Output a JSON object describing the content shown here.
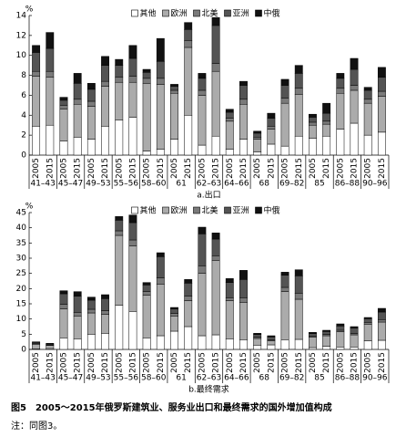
{
  "chart_data": [
    {
      "type": "bar",
      "stacked": true,
      "y_label": "%",
      "subtitle": "a.出口",
      "legend": "top",
      "categories": [
        "2005",
        "2015",
        "2005",
        "2015",
        "2005",
        "2015",
        "2005",
        "2015",
        "2005",
        "2015",
        "2005",
        "2015",
        "2005",
        "2015",
        "2005",
        "2015",
        "2005",
        "2015",
        "2005",
        "2015",
        "2005",
        "2015",
        "2005",
        "2015",
        "2005",
        "2015"
      ],
      "groups": [
        "41–43",
        "45–47",
        "49–53",
        "55–56",
        "58–60",
        "61",
        "62–63",
        "64–66",
        "68",
        "69–82",
        "85",
        "86–88",
        "90–96"
      ],
      "series": [
        {
          "name": "其他",
          "color": "#ffffff",
          "values": [
            2.9,
            3.0,
            1.4,
            1.8,
            1.6,
            2.9,
            3.5,
            3.8,
            0.4,
            0.6,
            1.6,
            4.0,
            1.0,
            1.9,
            0.6,
            1.6,
            0.3,
            1.1,
            0.9,
            1.9,
            1.7,
            1.9,
            2.6,
            3.2,
            2.0,
            2.3
          ]
        },
        {
          "name": "欧洲",
          "color": "#ababab",
          "values": [
            5.0,
            4.8,
            3.2,
            3.3,
            3.3,
            4.0,
            3.8,
            3.5,
            6.8,
            6.5,
            4.6,
            6.8,
            5.0,
            6.5,
            2.8,
            3.5,
            1.3,
            1.5,
            4.3,
            4.2,
            1.3,
            1.2,
            3.6,
            3.3,
            3.2,
            3.6
          ]
        },
        {
          "name": "北美",
          "color": "#7a7a7a",
          "values": [
            0.5,
            0.6,
            0.4,
            0.5,
            0.5,
            0.5,
            0.5,
            0.6,
            0.5,
            0.6,
            0.3,
            0.7,
            0.5,
            0.8,
            0.3,
            0.5,
            0.2,
            0.3,
            0.5,
            0.6,
            0.3,
            0.3,
            0.5,
            0.5,
            0.4,
            0.5
          ]
        },
        {
          "name": "亚洲",
          "color": "#545454",
          "values": [
            1.9,
            2.3,
            0.5,
            1.6,
            1.2,
            1.6,
            1.2,
            1.8,
            0.6,
            1.7,
            0.4,
            1.1,
            1.2,
            3.8,
            0.6,
            1.4,
            0.4,
            0.8,
            1.3,
            1.5,
            0.5,
            0.8,
            1.0,
            1.6,
            0.9,
            1.4
          ]
        },
        {
          "name": "中俄",
          "color": "#111111",
          "values": [
            0.7,
            1.6,
            0.3,
            1.0,
            0.6,
            0.9,
            0.6,
            1.3,
            0.3,
            2.3,
            0.2,
            0.7,
            0.5,
            0.8,
            0.3,
            0.4,
            0.2,
            0.5,
            0.6,
            0.8,
            0.3,
            1.0,
            0.5,
            1.1,
            0.3,
            1.0
          ]
        }
      ],
      "ylim": [
        0,
        14
      ],
      "yticks": [
        0,
        2,
        4,
        6,
        8,
        10,
        12,
        14
      ]
    },
    {
      "type": "bar",
      "stacked": true,
      "y_label": "%",
      "subtitle": "b.最终需求",
      "legend": "top",
      "categories": [
        "2005",
        "2015",
        "2005",
        "2015",
        "2005",
        "2015",
        "2005",
        "2015",
        "2005",
        "2015",
        "2005",
        "2015",
        "2005",
        "2015",
        "2005",
        "2015",
        "2005",
        "2015",
        "2005",
        "2015",
        "2005",
        "2015",
        "2005",
        "2015",
        "2005",
        "2015"
      ],
      "groups": [
        "41–43",
        "45–47",
        "49–53",
        "55–56",
        "58–60",
        "61",
        "62–63",
        "64–66",
        "68",
        "69–82",
        "85",
        "86–88",
        "90–96"
      ],
      "series": [
        {
          "name": "其他",
          "color": "#ffffff",
          "values": [
            0.2,
            0.3,
            3.8,
            3.5,
            5.0,
            5.3,
            14.5,
            12.5,
            3.8,
            4.5,
            6.0,
            7.5,
            4.5,
            4.8,
            3.5,
            3.2,
            1.4,
            1.5,
            3.2,
            3.3,
            0.6,
            1.0,
            0.8,
            0.8,
            2.8,
            3.0
          ]
        },
        {
          "name": "欧洲",
          "color": "#ababab",
          "values": [
            1.5,
            1.0,
            9.5,
            7.5,
            7.0,
            6.2,
            23.0,
            21.5,
            14.0,
            17.0,
            5.0,
            8.5,
            20.5,
            24.5,
            12.5,
            12.3,
            2.2,
            1.3,
            15.8,
            13.2,
            3.4,
            3.5,
            5.0,
            4.0,
            5.5,
            6.0
          ]
        },
        {
          "name": "北美",
          "color": "#7a7a7a",
          "values": [
            0.2,
            0.2,
            1.5,
            1.2,
            1.2,
            1.2,
            1.5,
            2.0,
            1.2,
            2.0,
            0.8,
            1.5,
            2.5,
            1.5,
            1.0,
            1.5,
            0.4,
            0.3,
            1.4,
            2.0,
            0.4,
            0.4,
            0.5,
            0.4,
            0.6,
            0.8
          ]
        },
        {
          "name": "亚洲",
          "color": "#545454",
          "values": [
            0.4,
            0.3,
            3.5,
            5.3,
            3.0,
            4.0,
            3.5,
            5.7,
            2.2,
            7.0,
            1.5,
            4.3,
            10.5,
            5.5,
            5.0,
            6.0,
            0.9,
            1.0,
            4.0,
            5.7,
            0.8,
            1.0,
            1.4,
            1.8,
            1.2,
            2.5
          ]
        },
        {
          "name": "中俄",
          "color": "#111111",
          "values": [
            0.2,
            0.2,
            1.0,
            1.5,
            1.0,
            1.3,
            1.2,
            2.5,
            0.8,
            1.3,
            0.5,
            1.2,
            2.2,
            2.0,
            1.3,
            3.0,
            0.4,
            0.4,
            1.0,
            2.0,
            0.4,
            0.4,
            0.7,
            0.5,
            0.4,
            1.2
          ]
        }
      ],
      "ylim": [
        0,
        45
      ],
      "yticks": [
        0,
        5,
        10,
        15,
        20,
        25,
        30,
        35,
        40,
        45
      ]
    }
  ],
  "caption": "图5　2005～2015年俄罗斯建筑业、服务业出口和最终需求的国外增加值构成",
  "note": "注：同图3。"
}
